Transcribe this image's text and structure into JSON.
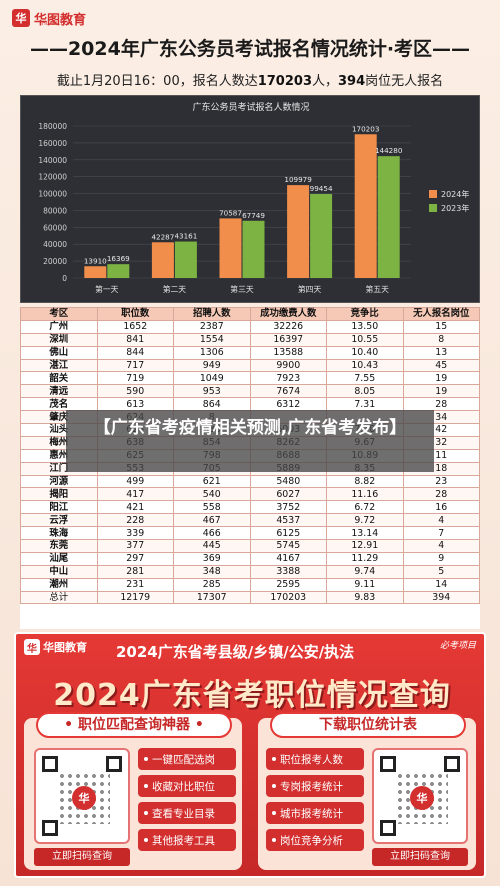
{
  "header": {
    "logo_text": "华图教育",
    "logo_sub": "HUATU.COM",
    "title": "——2024年广东公务员考试报名情况统计·考区——",
    "subtitle_prefix": "截止1月20日16：00，报名人数达",
    "subtitle_count": "170203",
    "subtitle_mid": "人，",
    "subtitle_nohire": "394",
    "subtitle_suffix": "岗位无人报名"
  },
  "chart_data": {
    "type": "bar",
    "title": "广东公务员考试报名人数情况",
    "categories": [
      "第一天",
      "第二天",
      "第三天",
      "第四天",
      "第五天"
    ],
    "series": [
      {
        "name": "2024年",
        "color": "#f28e4b",
        "values": [
          13910,
          42287,
          70587,
          109979,
          170203
        ]
      },
      {
        "name": "2023年",
        "color": "#7cb342",
        "values": [
          16369,
          43161,
          67749,
          99454,
          144280
        ]
      }
    ],
    "ylim": [
      0,
      180000
    ],
    "yticks": [
      "0",
      "20000",
      "40000",
      "60000",
      "80000",
      "100000",
      "120000",
      "140000",
      "160000",
      "180000"
    ],
    "grid": true,
    "legend": "right"
  },
  "table": {
    "headers": [
      "考区",
      "职位数",
      "招聘人数",
      "成功缴费人数",
      "竞争比",
      "无人报名岗位"
    ],
    "rows": [
      [
        "广州",
        "1652",
        "2387",
        "32226",
        "13.50",
        "15"
      ],
      [
        "深圳",
        "841",
        "1554",
        "16397",
        "10.55",
        "8"
      ],
      [
        "佛山",
        "844",
        "1306",
        "13588",
        "10.40",
        "13"
      ],
      [
        "湛江",
        "717",
        "949",
        "9900",
        "10.43",
        "45"
      ],
      [
        "韶关",
        "719",
        "1049",
        "7923",
        "7.55",
        "19"
      ],
      [
        "清远",
        "590",
        "953",
        "7674",
        "8.05",
        "19"
      ],
      [
        "茂名",
        "613",
        "864",
        "6312",
        "7.31",
        "28"
      ],
      [
        "肇庆",
        "624",
        "8",
        "",
        "",
        "34"
      ],
      [
        "汕头",
        "624",
        "836",
        "6003",
        "7.18",
        "42"
      ],
      [
        "梅州",
        "638",
        "854",
        "8262",
        "9.67",
        "32"
      ],
      [
        "惠州",
        "625",
        "798",
        "8688",
        "10.89",
        "11"
      ],
      [
        "江门",
        "553",
        "705",
        "5889",
        "8.35",
        "18"
      ],
      [
        "河源",
        "499",
        "621",
        "5480",
        "8.82",
        "23"
      ],
      [
        "揭阳",
        "417",
        "540",
        "6027",
        "11.16",
        "28"
      ],
      [
        "阳江",
        "421",
        "558",
        "3752",
        "6.72",
        "16"
      ],
      [
        "云浮",
        "228",
        "467",
        "4537",
        "9.72",
        "4"
      ],
      [
        "珠海",
        "339",
        "466",
        "6125",
        "13.14",
        "7"
      ],
      [
        "东莞",
        "377",
        "445",
        "5745",
        "12.91",
        "4"
      ],
      [
        "汕尾",
        "297",
        "369",
        "4167",
        "11.29",
        "9"
      ],
      [
        "中山",
        "281",
        "348",
        "3388",
        "9.74",
        "5"
      ],
      [
        "潮州",
        "231",
        "285",
        "2595",
        "9.11",
        "14"
      ],
      [
        "总计",
        "12179",
        "17307",
        "170203",
        "9.83",
        "394"
      ]
    ]
  },
  "overlay": {
    "text": "【广东省考疫情相关预测,广东省考发布】"
  },
  "promo": {
    "logo_text": "华图教育",
    "title": "2024广东省考县级/乡镇/公安/执法",
    "stamp": "必考项目",
    "big_title": "2024广东省考职位情况查询",
    "left_card": {
      "head": "• 职位匹配查询神器 •",
      "features": [
        "一键匹配选岗",
        "收藏对比职位",
        "查看专业目录",
        "其他报考工具"
      ],
      "button": "立即扫码查询"
    },
    "right_card": {
      "head": "下载职位统计表",
      "features": [
        "职位报考人数",
        "专岗报考统计",
        "城市报考统计",
        "岗位竞争分析"
      ],
      "button": "立即扫码查询"
    }
  }
}
